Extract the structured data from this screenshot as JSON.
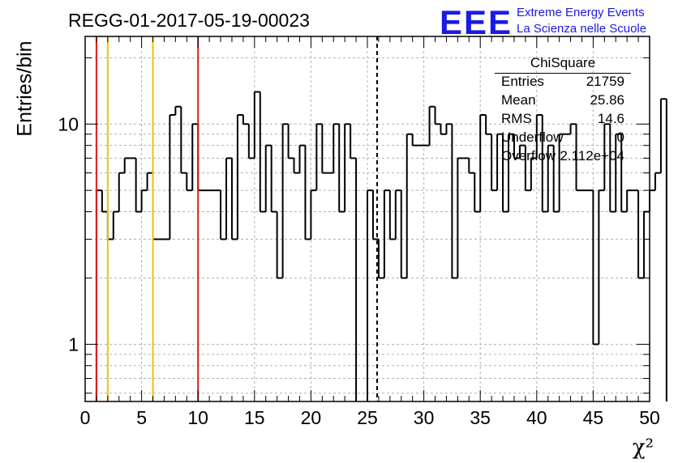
{
  "header": {
    "title": "REGG-01-2017-05-19-00023",
    "logo": "EEE",
    "brand_line1": "Extreme Energy Events",
    "brand_line2": "La Scienza nelle Scuole"
  },
  "stats_box": {
    "title": "ChiSquare",
    "rows": [
      {
        "key": "Entries",
        "value": "21759"
      },
      {
        "key": "Mean",
        "value": "25.86"
      },
      {
        "key": "RMS",
        "value": "14.6"
      },
      {
        "key": "Underflow",
        "value": "0"
      },
      {
        "key": "Overflow",
        "value": "2.112e+04"
      }
    ]
  },
  "colors": {
    "red_line": "#e01b1b",
    "yellow_line": "#f2c300",
    "histogram": "#000000",
    "grid": "#b0b0b0",
    "brand": "#1a1ae6"
  },
  "chart_data": {
    "type": "histogram",
    "xlabel": "χ²",
    "ylabel": "Entries/bin",
    "xlim": [
      0,
      50
    ],
    "ylim": [
      0.55,
      25
    ],
    "log_y": true,
    "grid": true,
    "bin_width": 0.5,
    "x_ticks": [
      "0",
      "5",
      "10",
      "15",
      "20",
      "25",
      "30",
      "35",
      "40",
      "45",
      "50"
    ],
    "y_ticks": [
      "1",
      "10"
    ],
    "counts": [
      0,
      0,
      5,
      4,
      3,
      4,
      6,
      7,
      7,
      4,
      5,
      6,
      3,
      3,
      3,
      11,
      12,
      6,
      5,
      10,
      5,
      5,
      5,
      5,
      3,
      7,
      3,
      11,
      10,
      7,
      14,
      4,
      8,
      4,
      2,
      10,
      7,
      6,
      8,
      3,
      5,
      10,
      6,
      6,
      10,
      4,
      10,
      7,
      0,
      0,
      5,
      3,
      2,
      5,
      3,
      5,
      2,
      9,
      8,
      8,
      8,
      12,
      10,
      9,
      10,
      2,
      7,
      7,
      6,
      4,
      11,
      9,
      5,
      9,
      4,
      9,
      7,
      8,
      5,
      7,
      11,
      4,
      8,
      4,
      9,
      9,
      10,
      5,
      5,
      5,
      1,
      5,
      10,
      4,
      9,
      4,
      5,
      5,
      2,
      4,
      5,
      6,
      13,
      0
    ],
    "vertical_lines": [
      {
        "x": 1,
        "color": "red"
      },
      {
        "x": 2,
        "color": "yellow"
      },
      {
        "x": 6,
        "color": "yellow"
      },
      {
        "x": 10,
        "color": "red"
      },
      {
        "x": 25.86,
        "color": "black",
        "dashed": true
      }
    ]
  }
}
